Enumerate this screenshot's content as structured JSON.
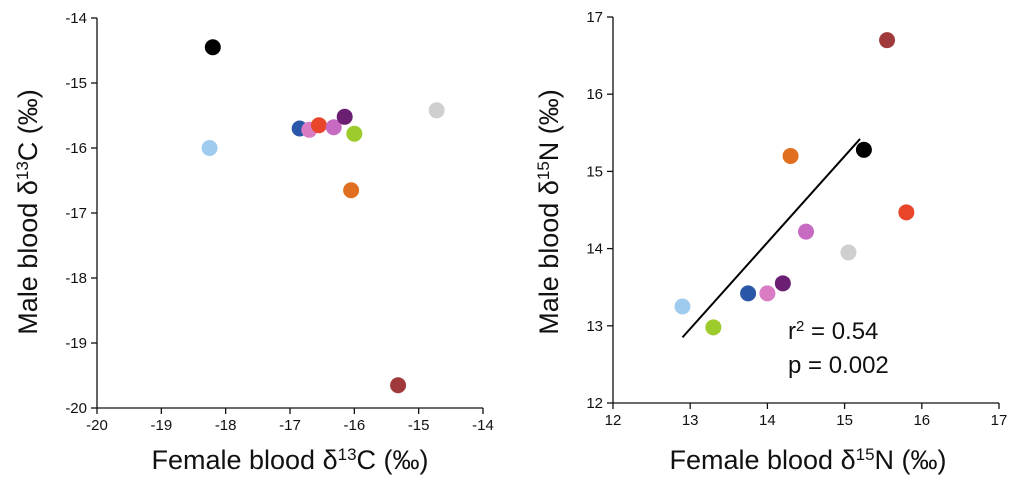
{
  "chart_data": [
    {
      "type": "scatter",
      "xlabel": {
        "prefix": "Female blood δ",
        "sup": "13",
        "suffix": "C (‰)"
      },
      "ylabel": {
        "prefix": "Male blood δ",
        "sup": "13",
        "suffix": "C (‰)"
      },
      "xlim": [
        -20,
        -14
      ],
      "ylim": [
        -20,
        -14
      ],
      "xticks": [
        -20,
        -19,
        -18,
        -17,
        -16,
        -15,
        -14
      ],
      "yticks": [
        -20,
        -19,
        -18,
        -17,
        -16,
        -15,
        -14
      ],
      "grid": false,
      "points": [
        {
          "x": -18.2,
          "y": -14.45,
          "color": "#000000"
        },
        {
          "x": -18.25,
          "y": -16.0,
          "color": "#9fcbef"
        },
        {
          "x": -16.85,
          "y": -15.7,
          "color": "#2a56a8"
        },
        {
          "x": -16.7,
          "y": -15.72,
          "color": "#d97cc4"
        },
        {
          "x": -16.55,
          "y": -15.65,
          "color": "#e8452a"
        },
        {
          "x": -16.32,
          "y": -15.68,
          "color": "#c76ac2"
        },
        {
          "x": -16.15,
          "y": -15.52,
          "color": "#6a1f72"
        },
        {
          "x": -16.0,
          "y": -15.78,
          "color": "#9ccb2b"
        },
        {
          "x": -16.05,
          "y": -16.65,
          "color": "#e07020"
        },
        {
          "x": -14.72,
          "y": -15.42,
          "color": "#cfcfcf"
        },
        {
          "x": -15.32,
          "y": -19.65,
          "color": "#a03a3a"
        }
      ]
    },
    {
      "type": "scatter",
      "xlabel": {
        "prefix": "Female blood δ",
        "sup": "15",
        "suffix": "N (‰)"
      },
      "ylabel": {
        "prefix": "Male blood δ",
        "sup": "15",
        "suffix": "N (‰)"
      },
      "xlim": [
        12,
        17
      ],
      "ylim": [
        12,
        17
      ],
      "xticks": [
        12,
        13,
        14,
        15,
        16,
        17
      ],
      "yticks": [
        12,
        13,
        14,
        15,
        16,
        17
      ],
      "grid": false,
      "points": [
        {
          "x": 15.55,
          "y": 16.7,
          "color": "#a03a3a"
        },
        {
          "x": 14.3,
          "y": 15.2,
          "color": "#e07020"
        },
        {
          "x": 15.25,
          "y": 15.28,
          "color": "#000000"
        },
        {
          "x": 15.8,
          "y": 14.47,
          "color": "#e8452a"
        },
        {
          "x": 14.5,
          "y": 14.22,
          "color": "#c76ac2"
        },
        {
          "x": 15.05,
          "y": 13.95,
          "color": "#cfcfcf"
        },
        {
          "x": 14.2,
          "y": 13.55,
          "color": "#6a1f72"
        },
        {
          "x": 13.75,
          "y": 13.42,
          "color": "#2a56a8"
        },
        {
          "x": 14.0,
          "y": 13.42,
          "color": "#d97cc4"
        },
        {
          "x": 12.9,
          "y": 13.25,
          "color": "#9fcbef"
        },
        {
          "x": 13.3,
          "y": 12.98,
          "color": "#9ccb2b"
        }
      ],
      "regression_line": {
        "x": [
          12.9,
          15.2
        ],
        "y": [
          12.85,
          15.42
        ],
        "color": "#000000"
      },
      "annotations": {
        "r2": {
          "prefix": "r",
          "sup": "2",
          "suffix": " = 0.54"
        },
        "p": "p = 0.002"
      }
    }
  ]
}
